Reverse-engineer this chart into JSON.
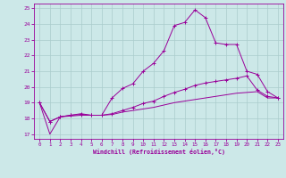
{
  "title": "",
  "xlabel": "Windchill (Refroidissement éolien,°C)",
  "bg_color": "#cce8e8",
  "line_color": "#990099",
  "grid_color": "#aacccc",
  "xlim": [
    -0.5,
    23.5
  ],
  "ylim": [
    16.7,
    25.3
  ],
  "yticks": [
    17,
    18,
    19,
    20,
    21,
    22,
    23,
    24,
    25
  ],
  "xticks": [
    0,
    1,
    2,
    3,
    4,
    5,
    6,
    7,
    8,
    9,
    10,
    11,
    12,
    13,
    14,
    15,
    16,
    17,
    18,
    19,
    20,
    21,
    22,
    23
  ],
  "series1_x": [
    0,
    1,
    2,
    3,
    4,
    5,
    6,
    7,
    8,
    9,
    10,
    11,
    12,
    13,
    14,
    15,
    16,
    17,
    18,
    19,
    20,
    21,
    22,
    23
  ],
  "series1_y": [
    19.0,
    17.8,
    18.1,
    18.2,
    18.3,
    18.2,
    18.2,
    19.3,
    19.9,
    20.2,
    21.0,
    21.5,
    22.3,
    23.9,
    24.1,
    24.9,
    24.4,
    22.8,
    22.7,
    22.7,
    21.0,
    20.8,
    19.7,
    19.3
  ],
  "series2_x": [
    0,
    1,
    2,
    3,
    4,
    5,
    6,
    7,
    8,
    9,
    10,
    11,
    12,
    13,
    14,
    15,
    16,
    17,
    18,
    19,
    20,
    21,
    22,
    23
  ],
  "series2_y": [
    19.0,
    17.0,
    18.1,
    18.15,
    18.2,
    18.2,
    18.2,
    18.25,
    18.4,
    18.5,
    18.6,
    18.7,
    18.85,
    19.0,
    19.1,
    19.2,
    19.3,
    19.4,
    19.5,
    19.6,
    19.65,
    19.7,
    19.3,
    19.3
  ],
  "series3_x": [
    0,
    1,
    2,
    3,
    4,
    5,
    6,
    7,
    8,
    9,
    10,
    11,
    12,
    13,
    14,
    15,
    16,
    17,
    18,
    19,
    20,
    21,
    22,
    23
  ],
  "series3_y": [
    19.0,
    17.8,
    18.1,
    18.2,
    18.25,
    18.2,
    18.2,
    18.3,
    18.5,
    18.7,
    18.95,
    19.1,
    19.4,
    19.65,
    19.85,
    20.1,
    20.25,
    20.35,
    20.45,
    20.55,
    20.7,
    19.8,
    19.4,
    19.3
  ]
}
